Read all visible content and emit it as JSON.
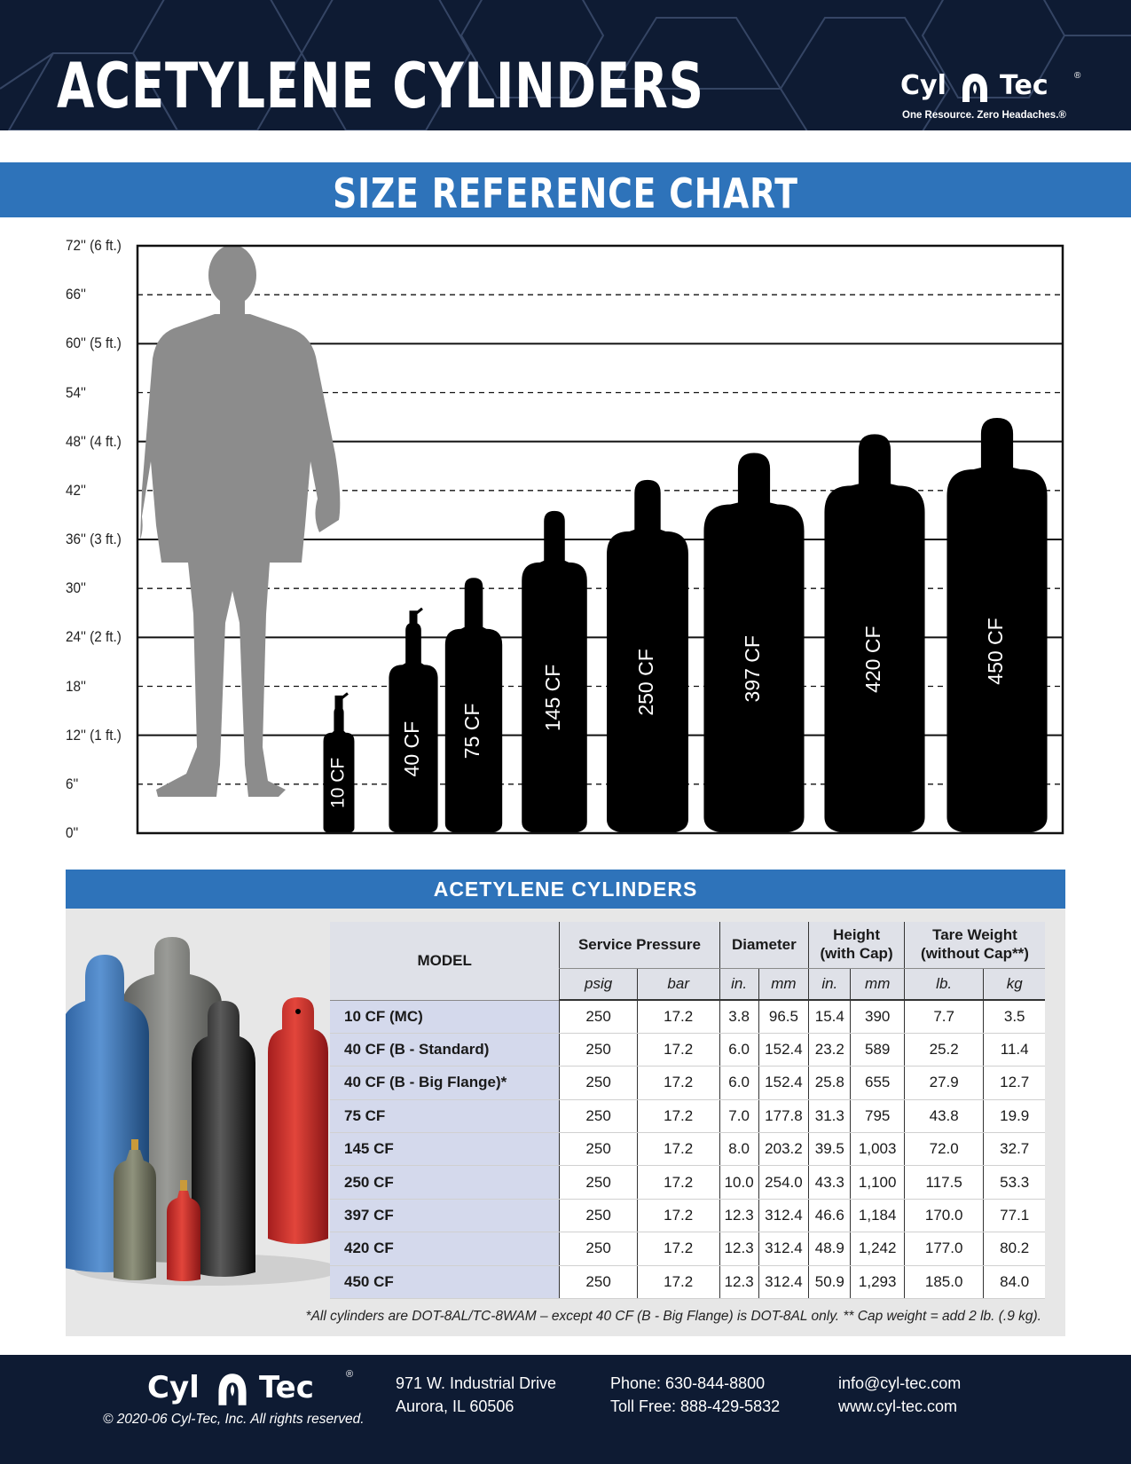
{
  "header": {
    "title": "ACETYLENE CYLINDERS",
    "brand_left": "Cyl",
    "brand_right": "Tec",
    "brand_reg": "®",
    "tagline": "One Resource. Zero Headaches.®"
  },
  "band": {
    "label": "SIZE REFERENCE CHART"
  },
  "chart_data": {
    "type": "bar",
    "title": "SIZE REFERENCE CHART",
    "y_unit": "inches",
    "ylim": [
      0,
      72
    ],
    "y_ticks": [
      {
        "value": 72,
        "label": "72'' (6 ft.)"
      },
      {
        "value": 66,
        "label": "66''"
      },
      {
        "value": 60,
        "label": "60'' (5 ft.)"
      },
      {
        "value": 54,
        "label": "54''"
      },
      {
        "value": 48,
        "label": "48'' (4 ft.)"
      },
      {
        "value": 42,
        "label": "42''"
      },
      {
        "value": 36,
        "label": "36'' (3 ft.)"
      },
      {
        "value": 30,
        "label": "30''"
      },
      {
        "value": 24,
        "label": "24'' (2 ft.)"
      },
      {
        "value": 18,
        "label": "18''"
      },
      {
        "value": 12,
        "label": "12'' (1 ft.)"
      },
      {
        "value": 6,
        "label": "6''"
      },
      {
        "value": 0,
        "label": "0''"
      }
    ],
    "categories": [
      "10 CF",
      "40 CF",
      "75 CF",
      "145 CF",
      "250 CF",
      "397 CF",
      "420 CF",
      "450 CF"
    ],
    "heights": [
      15.4,
      25.8,
      31.3,
      39.5,
      43.3,
      46.6,
      48.9,
      50.9
    ],
    "diameters": [
      3.8,
      6.0,
      7.0,
      8.0,
      10.0,
      12.3,
      12.3,
      12.3
    ],
    "grid": "dashed at odd multiples of 6, solid at multiples of 12"
  },
  "table_section": {
    "title": "ACETYLENE CYLINDERS",
    "headers": {
      "model": "MODEL",
      "service_pressure": "Service Pressure",
      "diameter": "Diameter",
      "height_1": "Height",
      "height_2": "(with Cap)",
      "tare_1": "Tare Weight",
      "tare_2": "(without Cap**)"
    },
    "units": [
      "psig",
      "bar",
      "in.",
      "mm",
      "in.",
      "mm",
      "lb.",
      "kg"
    ],
    "rows": [
      [
        "10 CF (MC)",
        "250",
        "17.2",
        "3.8",
        "96.5",
        "15.4",
        "390",
        "7.7",
        "3.5"
      ],
      [
        "40 CF  (B - Standard)",
        "250",
        "17.2",
        "6.0",
        "152.4",
        "23.2",
        "589",
        "25.2",
        "11.4"
      ],
      [
        "40 CF  (B - Big Flange)*",
        "250",
        "17.2",
        "6.0",
        "152.4",
        "25.8",
        "655",
        "27.9",
        "12.7"
      ],
      [
        "75 CF",
        "250",
        "17.2",
        "7.0",
        "177.8",
        "31.3",
        "795",
        "43.8",
        "19.9"
      ],
      [
        "145 CF",
        "250",
        "17.2",
        "8.0",
        "203.2",
        "39.5",
        "1,003",
        "72.0",
        "32.7"
      ],
      [
        "250 CF",
        "250",
        "17.2",
        "10.0",
        "254.0",
        "43.3",
        "1,100",
        "117.5",
        "53.3"
      ],
      [
        "397 CF",
        "250",
        "17.2",
        "12.3",
        "312.4",
        "46.6",
        "1,184",
        "170.0",
        "77.1"
      ],
      [
        "420 CF",
        "250",
        "17.2",
        "12.3",
        "312.4",
        "48.9",
        "1,242",
        "177.0",
        "80.2"
      ],
      [
        "450 CF",
        "250",
        "17.2",
        "12.3",
        "312.4",
        "50.9",
        "1,293",
        "185.0",
        "84.0"
      ]
    ],
    "footnote": "*All cylinders are DOT-8AL/TC-8WAM – except 40 CF (B - Big Flange) is DOT-8AL only.  ** Cap weight = add 2 lb. (.9 kg)."
  },
  "footer": {
    "brand_left": "Cyl",
    "brand_right": "Tec",
    "brand_reg": "®",
    "copyright": "© 2020-06  Cyl-Tec, Inc. All rights reserved.",
    "address_1": "971 W. Industrial Drive",
    "address_2": "Aurora, IL 60506",
    "phone": "Phone: 630-844-8800",
    "tollfree": "Toll Free: 888-429-5832",
    "email": "info@cyl-tec.com",
    "web": "www.cyl-tec.com"
  },
  "colors": {
    "navy": "#0e1b33",
    "blue": "#2e73ba",
    "model_cell": "#d4d9ec",
    "silhouette": "#8c8c8c"
  }
}
